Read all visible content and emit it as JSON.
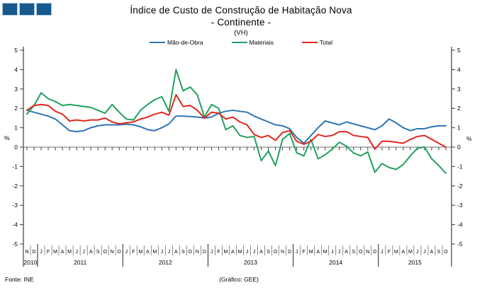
{
  "header": {
    "title_line1": "Índice de Custo de Construção de Habitação Nova",
    "title_line2": "- Continente -",
    "subtitle": "(VH)"
  },
  "footer": {
    "source": "Fonte:  INE",
    "credit": "(Gráfico:  GEE)"
  },
  "chart_data": {
    "type": "line",
    "title": "Índice de Custo de Construção de Habitação Nova - Continente - (VH)",
    "y_unit": "%",
    "ylim": [
      -5,
      5
    ],
    "ytick_step": 1,
    "grid": "zero-line-only",
    "legend_position": "top",
    "x_labels": [
      "N",
      "D",
      "J",
      "F",
      "M",
      "A",
      "M",
      "J",
      "J",
      "A",
      "S",
      "O",
      "N",
      "D",
      "J",
      "F",
      "M",
      "A",
      "M",
      "J",
      "J",
      "A",
      "S",
      "O",
      "N",
      "D",
      "J",
      "F",
      "M",
      "A",
      "M",
      "J",
      "J",
      "A",
      "S",
      "O",
      "N",
      "D",
      "J",
      "F",
      "M",
      "A",
      "M",
      "J",
      "J",
      "A",
      "S",
      "O",
      "N",
      "D",
      "J",
      "F",
      "M",
      "A",
      "M",
      "J",
      "J",
      "A",
      "S",
      "O"
    ],
    "years": [
      {
        "label": "2010",
        "from": 0,
        "to": 1
      },
      {
        "label": "2011",
        "from": 2,
        "to": 13
      },
      {
        "label": "2012",
        "from": 14,
        "to": 25
      },
      {
        "label": "2013",
        "from": 26,
        "to": 37
      },
      {
        "label": "2014",
        "from": 38,
        "to": 49
      },
      {
        "label": "2015",
        "from": 50,
        "to": 59
      }
    ],
    "series": [
      {
        "name": "Mão-de-Obra",
        "color": "#2e75b6",
        "values": [
          1.9,
          1.8,
          1.7,
          1.6,
          1.45,
          1.15,
          0.85,
          0.8,
          0.85,
          1.0,
          1.1,
          1.15,
          1.15,
          1.15,
          1.18,
          1.15,
          1.05,
          0.9,
          0.85,
          1.0,
          1.2,
          1.6,
          1.6,
          1.58,
          1.55,
          1.5,
          1.55,
          1.75,
          1.85,
          1.9,
          1.85,
          1.8,
          1.6,
          1.45,
          1.3,
          1.15,
          1.1,
          0.95,
          0.5,
          0.2,
          0.6,
          1.0,
          1.35,
          1.25,
          1.15,
          1.3,
          1.2,
          1.1,
          1.0,
          0.9,
          1.1,
          1.45,
          1.25,
          1.0,
          0.85,
          0.95,
          0.95,
          1.05,
          1.1,
          1.1
        ]
      },
      {
        "name": "Materiais",
        "color": "#21a15f",
        "values": [
          1.7,
          2.15,
          2.8,
          2.5,
          2.35,
          2.15,
          2.2,
          2.15,
          2.1,
          2.05,
          1.9,
          1.75,
          2.2,
          1.8,
          1.45,
          1.4,
          1.9,
          2.2,
          2.45,
          2.6,
          1.85,
          4.0,
          2.9,
          3.1,
          2.7,
          1.55,
          2.2,
          2.0,
          0.9,
          1.1,
          0.6,
          0.5,
          0.55,
          -0.7,
          -0.2,
          -0.95,
          0.4,
          0.7,
          -0.3,
          -0.45,
          0.4,
          -0.6,
          -0.4,
          -0.1,
          0.25,
          0.05,
          -0.3,
          -0.45,
          -0.25,
          -1.3,
          -0.85,
          -1.05,
          -1.15,
          -0.9,
          -0.45,
          -0.05,
          0.0,
          -0.6,
          -0.95,
          -1.35
        ]
      },
      {
        "name": "Total",
        "color": "#e0281e",
        "values": [
          1.9,
          2.15,
          2.2,
          2.15,
          1.85,
          1.7,
          1.35,
          1.4,
          1.35,
          1.4,
          1.4,
          1.5,
          1.3,
          1.2,
          1.25,
          1.3,
          1.45,
          1.55,
          1.7,
          1.8,
          1.65,
          2.7,
          2.1,
          2.15,
          1.9,
          1.5,
          1.8,
          1.75,
          1.45,
          1.55,
          1.3,
          1.15,
          0.65,
          0.5,
          0.6,
          0.35,
          0.75,
          0.85,
          0.3,
          0.15,
          0.3,
          0.65,
          0.55,
          0.6,
          0.8,
          0.8,
          0.6,
          0.55,
          0.5,
          -0.1,
          0.3,
          0.3,
          0.25,
          0.2,
          0.4,
          0.55,
          0.6,
          0.4,
          0.2,
          0.0
        ]
      }
    ]
  }
}
